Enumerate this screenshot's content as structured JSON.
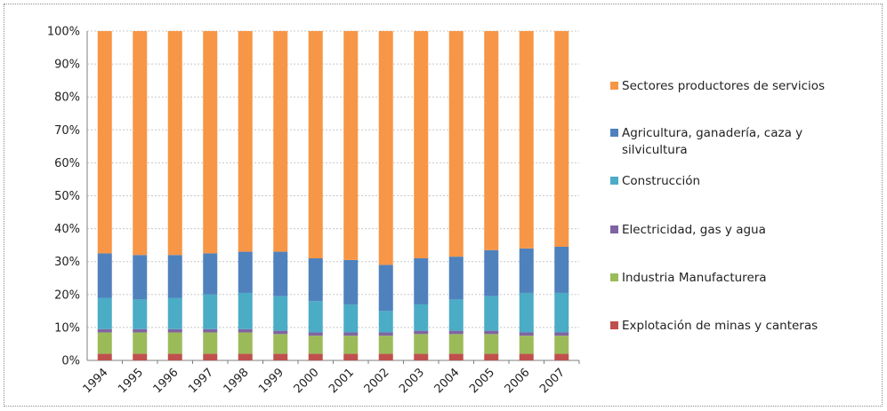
{
  "chart_data": {
    "type": "bar",
    "stacked": true,
    "percent": true,
    "categories": [
      "1994",
      "1995",
      "1996",
      "1997",
      "1998",
      "1999",
      "2000",
      "2001",
      "2002",
      "2003",
      "2004",
      "2005",
      "2006",
      "2007"
    ],
    "ylim": [
      0,
      100
    ],
    "yticks": [
      "0%",
      "10%",
      "20%",
      "30%",
      "40%",
      "50%",
      "60%",
      "70%",
      "80%",
      "90%",
      "100%"
    ],
    "grid": true,
    "legend_position": "right",
    "series": [
      {
        "name": "Explotación de minas y canteras",
        "color": "#c0504d",
        "values": [
          2.0,
          2.0,
          2.0,
          2.0,
          2.0,
          2.0,
          2.0,
          2.0,
          2.0,
          2.0,
          2.0,
          2.0,
          2.0,
          2.0
        ]
      },
      {
        "name": "Industria Manufacturera",
        "color": "#9bbb59",
        "values": [
          6.5,
          6.5,
          6.5,
          6.5,
          6.5,
          6.0,
          5.5,
          5.5,
          5.5,
          6.0,
          6.0,
          6.0,
          5.5,
          5.5
        ]
      },
      {
        "name": "Electricidad, gas y agua",
        "color": "#8064a2",
        "values": [
          1.0,
          1.0,
          1.0,
          1.0,
          1.0,
          1.0,
          1.0,
          1.0,
          1.0,
          1.0,
          1.0,
          1.0,
          1.0,
          1.0
        ]
      },
      {
        "name": "Construcción",
        "color": "#4bacc6",
        "values": [
          9.5,
          9.0,
          9.5,
          10.5,
          11.0,
          10.5,
          9.5,
          8.5,
          6.5,
          8.0,
          9.5,
          10.5,
          12.0,
          12.0
        ]
      },
      {
        "name": "Agricultura, ganadería, caza y silvicultura",
        "color": "#4f81bd",
        "values": [
          13.5,
          13.5,
          13.0,
          12.5,
          12.5,
          13.5,
          13.0,
          13.5,
          14.0,
          14.0,
          13.0,
          14.0,
          13.5,
          14.0
        ]
      },
      {
        "name": "Sectores productores de servicios",
        "color": "#f79646",
        "values": [
          67.5,
          68.0,
          68.0,
          67.5,
          67.0,
          67.0,
          69.0,
          69.5,
          71.0,
          69.0,
          68.5,
          66.5,
          66.0,
          65.5
        ]
      }
    ],
    "legend_order": [
      5,
      4,
      3,
      2,
      1,
      0
    ]
  }
}
